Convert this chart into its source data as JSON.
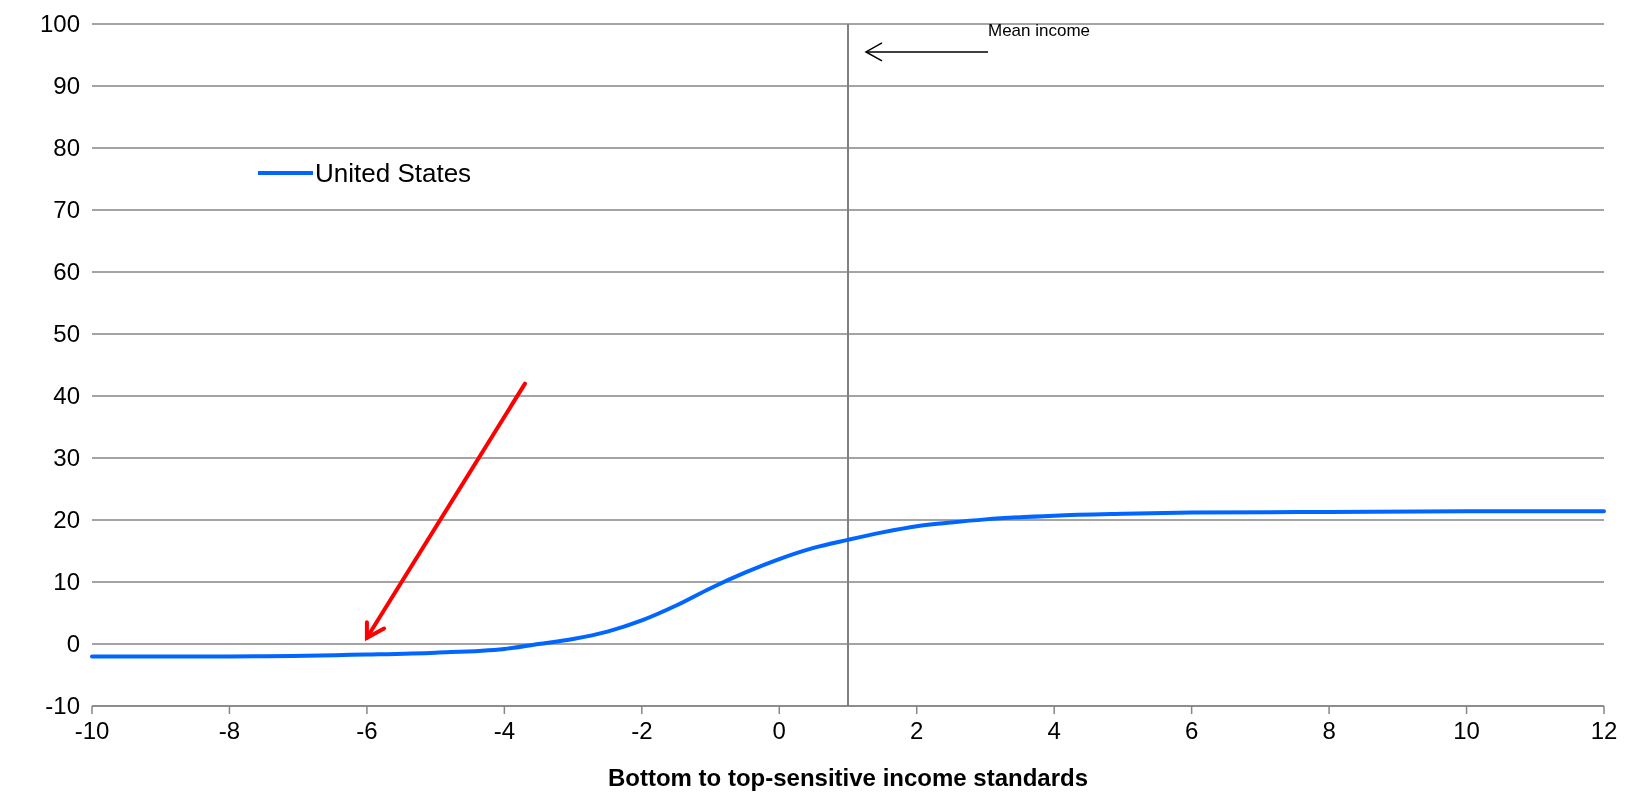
{
  "chart_data": {
    "type": "line",
    "xlabel": "Bottom to top-sensitive income standards",
    "x": [
      -10,
      -8,
      -6,
      -5,
      -4,
      -3.5,
      -3,
      -2.5,
      -2,
      -1.5,
      -1,
      -0.5,
      0,
      0.5,
      1,
      1.5,
      2,
      2.5,
      3,
      4,
      5,
      6,
      8,
      10,
      12
    ],
    "series": [
      {
        "name": "United States",
        "color": "#0066ff",
        "values": [
          -2.0,
          -2.0,
          -1.7,
          -1.4,
          -0.8,
          0,
          0.8,
          2,
          3.8,
          6.2,
          9.0,
          11.5,
          13.7,
          15.5,
          16.8,
          18.0,
          19.0,
          19.6,
          20.1,
          20.7,
          21.0,
          21.2,
          21.3,
          21.4,
          21.4
        ]
      }
    ],
    "xlim": [
      -10,
      12
    ],
    "xticks": [
      -10,
      -8,
      -6,
      -4,
      -2,
      0,
      2,
      4,
      6,
      8,
      10,
      12
    ],
    "ylim": [
      -10,
      100
    ],
    "yticks": [
      -10,
      0,
      10,
      20,
      30,
      40,
      50,
      60,
      70,
      80,
      90,
      100
    ],
    "ref_lines": [
      {
        "axis": "x",
        "value": 1,
        "color": "#808080"
      }
    ],
    "annotations": [
      "Mean income"
    ],
    "grid": "y",
    "legend": "top left",
    "marker": "none",
    "line_style": "solid"
  }
}
